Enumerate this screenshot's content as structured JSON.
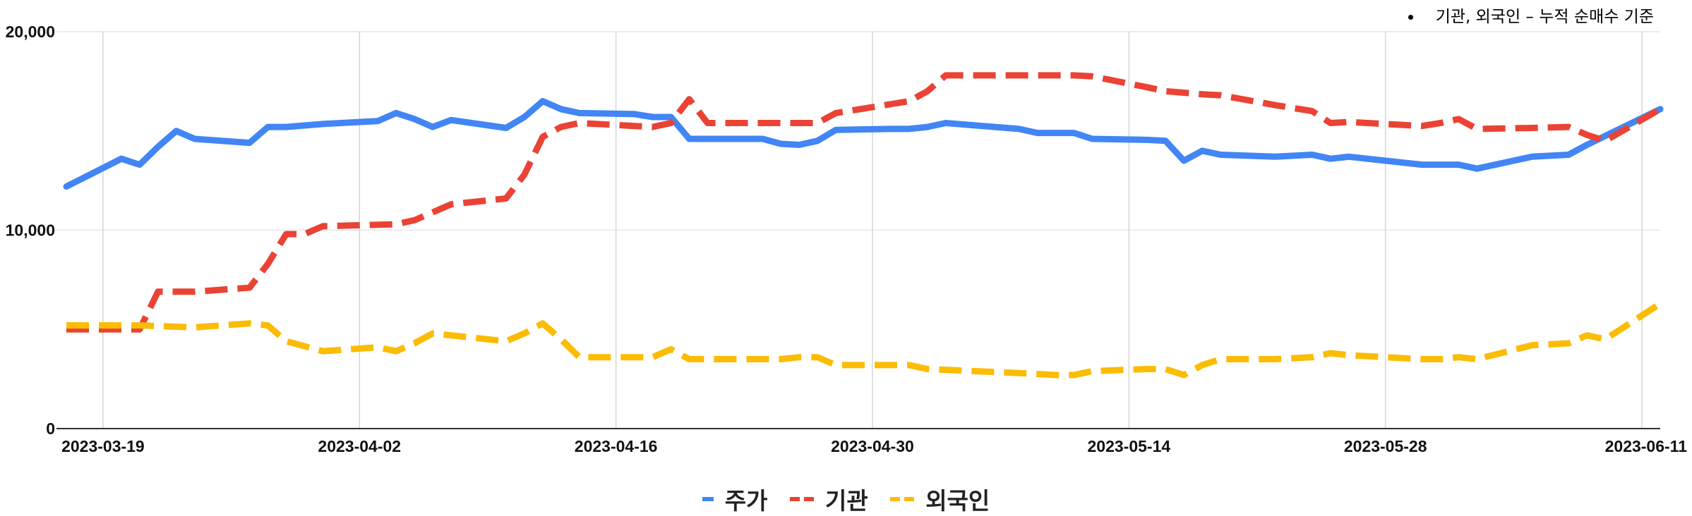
{
  "note": "기관, 외국인 – 누적 순매수 기준",
  "legend": [
    {
      "name": "주가",
      "color": "#4285F4",
      "dashed": false
    },
    {
      "name": "기관",
      "color": "#EA4335",
      "dashed": true
    },
    {
      "name": "외국인",
      "color": "#FBBC04",
      "dashed": true
    }
  ],
  "chart_data": {
    "type": "line",
    "title": "",
    "xlabel": "",
    "ylabel": "",
    "ylim": [
      0,
      20000
    ],
    "yticks": [
      0,
      10000,
      20000
    ],
    "ytick_labels": [
      "0",
      "10,000",
      "20,000"
    ],
    "xlim": [
      "2023-03-17",
      "2023-06-12"
    ],
    "xticks": [
      "2023-03-19",
      "2023-04-02",
      "2023-04-16",
      "2023-04-30",
      "2023-05-14",
      "2023-05-28",
      "2023-06-11"
    ],
    "grid": true,
    "legend_position": "bottom",
    "series": [
      {
        "name": "주가",
        "color": "#4285F4",
        "dash": false,
        "points": [
          [
            "2023-03-17",
            12200
          ],
          [
            "2023-03-20",
            13600
          ],
          [
            "2023-03-21",
            13300
          ],
          [
            "2023-03-22",
            14200
          ],
          [
            "2023-03-23",
            15000
          ],
          [
            "2023-03-24",
            14600
          ],
          [
            "2023-03-27",
            14400
          ],
          [
            "2023-03-28",
            15200
          ],
          [
            "2023-03-29",
            15200
          ],
          [
            "2023-03-31",
            15350
          ],
          [
            "2023-04-03",
            15500
          ],
          [
            "2023-04-04",
            15900
          ],
          [
            "2023-04-05",
            15600
          ],
          [
            "2023-04-06",
            15200
          ],
          [
            "2023-04-07",
            15550
          ],
          [
            "2023-04-10",
            15150
          ],
          [
            "2023-04-11",
            15700
          ],
          [
            "2023-04-12",
            16500
          ],
          [
            "2023-04-13",
            16100
          ],
          [
            "2023-04-14",
            15900
          ],
          [
            "2023-04-17",
            15850
          ],
          [
            "2023-04-18",
            15700
          ],
          [
            "2023-04-19",
            15700
          ],
          [
            "2023-04-20",
            14600
          ],
          [
            "2023-04-21",
            14600
          ],
          [
            "2023-04-24",
            14600
          ],
          [
            "2023-04-25",
            14350
          ],
          [
            "2023-04-26",
            14300
          ],
          [
            "2023-04-27",
            14500
          ],
          [
            "2023-04-28",
            15050
          ],
          [
            "2023-05-01",
            15100
          ],
          [
            "2023-05-02",
            15100
          ],
          [
            "2023-05-03",
            15200
          ],
          [
            "2023-05-04",
            15400
          ],
          [
            "2023-05-08",
            15100
          ],
          [
            "2023-05-09",
            14900
          ],
          [
            "2023-05-10",
            14900
          ],
          [
            "2023-05-11",
            14900
          ],
          [
            "2023-05-12",
            14600
          ],
          [
            "2023-05-15",
            14550
          ],
          [
            "2023-05-16",
            14500
          ],
          [
            "2023-05-17",
            13500
          ],
          [
            "2023-05-18",
            14000
          ],
          [
            "2023-05-19",
            13800
          ],
          [
            "2023-05-22",
            13700
          ],
          [
            "2023-05-23",
            13750
          ],
          [
            "2023-05-24",
            13800
          ],
          [
            "2023-05-25",
            13600
          ],
          [
            "2023-05-26",
            13700
          ],
          [
            "2023-05-30",
            13300
          ],
          [
            "2023-05-31",
            13300
          ],
          [
            "2023-06-01",
            13300
          ],
          [
            "2023-06-02",
            13100
          ],
          [
            "2023-06-05",
            13700
          ],
          [
            "2023-06-07",
            13800
          ],
          [
            "2023-06-08",
            14300
          ],
          [
            "2023-06-09",
            14750
          ],
          [
            "2023-06-12",
            16100
          ]
        ]
      },
      {
        "name": "기관",
        "color": "#EA4335",
        "dash": true,
        "points": [
          [
            "2023-03-17",
            5000
          ],
          [
            "2023-03-21",
            5000
          ],
          [
            "2023-03-22",
            6900
          ],
          [
            "2023-03-24",
            6900
          ],
          [
            "2023-03-27",
            7100
          ],
          [
            "2023-03-28",
            8300
          ],
          [
            "2023-03-29",
            9800
          ],
          [
            "2023-03-30",
            9800
          ],
          [
            "2023-03-31",
            10200
          ],
          [
            "2023-04-04",
            10300
          ],
          [
            "2023-04-05",
            10500
          ],
          [
            "2023-04-07",
            11300
          ],
          [
            "2023-04-10",
            11600
          ],
          [
            "2023-04-11",
            12800
          ],
          [
            "2023-04-12",
            14700
          ],
          [
            "2023-04-13",
            15200
          ],
          [
            "2023-04-14",
            15400
          ],
          [
            "2023-04-17",
            15250
          ],
          [
            "2023-04-18",
            15200
          ],
          [
            "2023-04-19",
            15400
          ],
          [
            "2023-04-20",
            16600
          ],
          [
            "2023-04-21",
            15400
          ],
          [
            "2023-04-24",
            15400
          ],
          [
            "2023-04-26",
            15400
          ],
          [
            "2023-04-27",
            15400
          ],
          [
            "2023-04-28",
            15900
          ],
          [
            "2023-05-02",
            16500
          ],
          [
            "2023-05-03",
            17000
          ],
          [
            "2023-05-04",
            17800
          ],
          [
            "2023-05-08",
            17800
          ],
          [
            "2023-05-11",
            17800
          ],
          [
            "2023-05-12",
            17750
          ],
          [
            "2023-05-15",
            17200
          ],
          [
            "2023-05-16",
            17000
          ],
          [
            "2023-05-18",
            16850
          ],
          [
            "2023-05-19",
            16800
          ],
          [
            "2023-05-22",
            16300
          ],
          [
            "2023-05-24",
            16000
          ],
          [
            "2023-05-25",
            15400
          ],
          [
            "2023-05-26",
            15450
          ],
          [
            "2023-05-30",
            15250
          ],
          [
            "2023-05-31",
            15400
          ],
          [
            "2023-06-01",
            15600
          ],
          [
            "2023-06-02",
            15100
          ],
          [
            "2023-06-05",
            15150
          ],
          [
            "2023-06-07",
            15200
          ],
          [
            "2023-06-08",
            14800
          ],
          [
            "2023-06-09",
            14500
          ],
          [
            "2023-06-12",
            16100
          ]
        ]
      },
      {
        "name": "외국인",
        "color": "#FBBC04",
        "dash": true,
        "points": [
          [
            "2023-03-17",
            5200
          ],
          [
            "2023-03-21",
            5200
          ],
          [
            "2023-03-24",
            5100
          ],
          [
            "2023-03-27",
            5300
          ],
          [
            "2023-03-28",
            5200
          ],
          [
            "2023-03-29",
            4400
          ],
          [
            "2023-03-31",
            3900
          ],
          [
            "2023-04-03",
            4100
          ],
          [
            "2023-04-04",
            3900
          ],
          [
            "2023-04-05",
            4300
          ],
          [
            "2023-04-06",
            4800
          ],
          [
            "2023-04-07",
            4700
          ],
          [
            "2023-04-10",
            4400
          ],
          [
            "2023-04-11",
            4800
          ],
          [
            "2023-04-12",
            5300
          ],
          [
            "2023-04-13",
            4500
          ],
          [
            "2023-04-14",
            3600
          ],
          [
            "2023-04-17",
            3600
          ],
          [
            "2023-04-18",
            3600
          ],
          [
            "2023-04-19",
            4000
          ],
          [
            "2023-04-20",
            3500
          ],
          [
            "2023-04-25",
            3500
          ],
          [
            "2023-04-26",
            3600
          ],
          [
            "2023-04-27",
            3600
          ],
          [
            "2023-04-28",
            3200
          ],
          [
            "2023-05-01",
            3200
          ],
          [
            "2023-05-02",
            3200
          ],
          [
            "2023-05-03",
            3000
          ],
          [
            "2023-05-08",
            2800
          ],
          [
            "2023-05-10",
            2700
          ],
          [
            "2023-05-11",
            2700
          ],
          [
            "2023-05-12",
            2900
          ],
          [
            "2023-05-15",
            3000
          ],
          [
            "2023-05-16",
            3000
          ],
          [
            "2023-05-17",
            2700
          ],
          [
            "2023-05-18",
            3200
          ],
          [
            "2023-05-19",
            3500
          ],
          [
            "2023-05-22",
            3500
          ],
          [
            "2023-05-24",
            3600
          ],
          [
            "2023-05-25",
            3800
          ],
          [
            "2023-05-26",
            3700
          ],
          [
            "2023-05-30",
            3500
          ],
          [
            "2023-05-31",
            3500
          ],
          [
            "2023-06-01",
            3600
          ],
          [
            "2023-06-02",
            3500
          ],
          [
            "2023-06-05",
            4200
          ],
          [
            "2023-06-07",
            4300
          ],
          [
            "2023-06-08",
            4700
          ],
          [
            "2023-06-09",
            4500
          ],
          [
            "2023-06-12",
            6300
          ]
        ]
      }
    ]
  }
}
